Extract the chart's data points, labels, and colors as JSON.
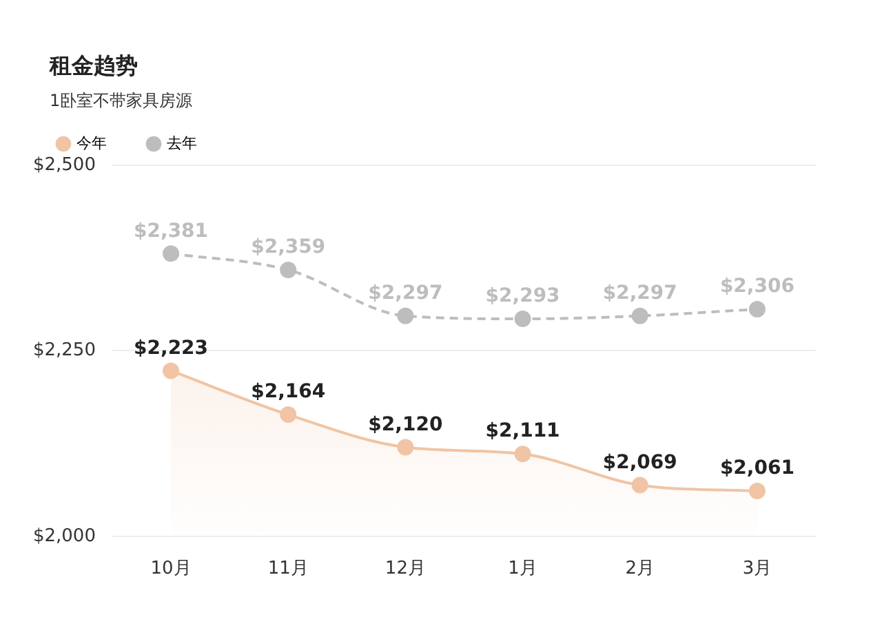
{
  "chart_data": {
    "type": "line",
    "title": "租金趋势",
    "subtitle": "1卧室不带家具房源",
    "categories": [
      "10月",
      "11月",
      "12月",
      "1月",
      "2月",
      "3月"
    ],
    "series": [
      {
        "name": "今年",
        "type": "area",
        "color": "#f0c4a4",
        "values": [
          2223,
          2164,
          2120,
          2111,
          2069,
          2061
        ],
        "value_labels": [
          "$2,223",
          "$2,164",
          "$2,120",
          "$2,111",
          "$2,069",
          "$2,061"
        ]
      },
      {
        "name": "去年",
        "type": "line",
        "line_style": "dashed",
        "color": "#bdbdbd",
        "values": [
          2381,
          2359,
          2297,
          2293,
          2297,
          2306
        ],
        "value_labels": [
          "$2,381",
          "$2,359",
          "$2,297",
          "$2,293",
          "$2,297",
          "$2,306"
        ]
      }
    ],
    "ylim": [
      2000,
      2500
    ],
    "yticks": [
      {
        "value": 2000,
        "label": "$2,000"
      },
      {
        "value": 2250,
        "label": "$2,250"
      },
      {
        "value": 2500,
        "label": "$2,500"
      }
    ],
    "grid": "y",
    "legend": "top left",
    "marker": "circle"
  }
}
